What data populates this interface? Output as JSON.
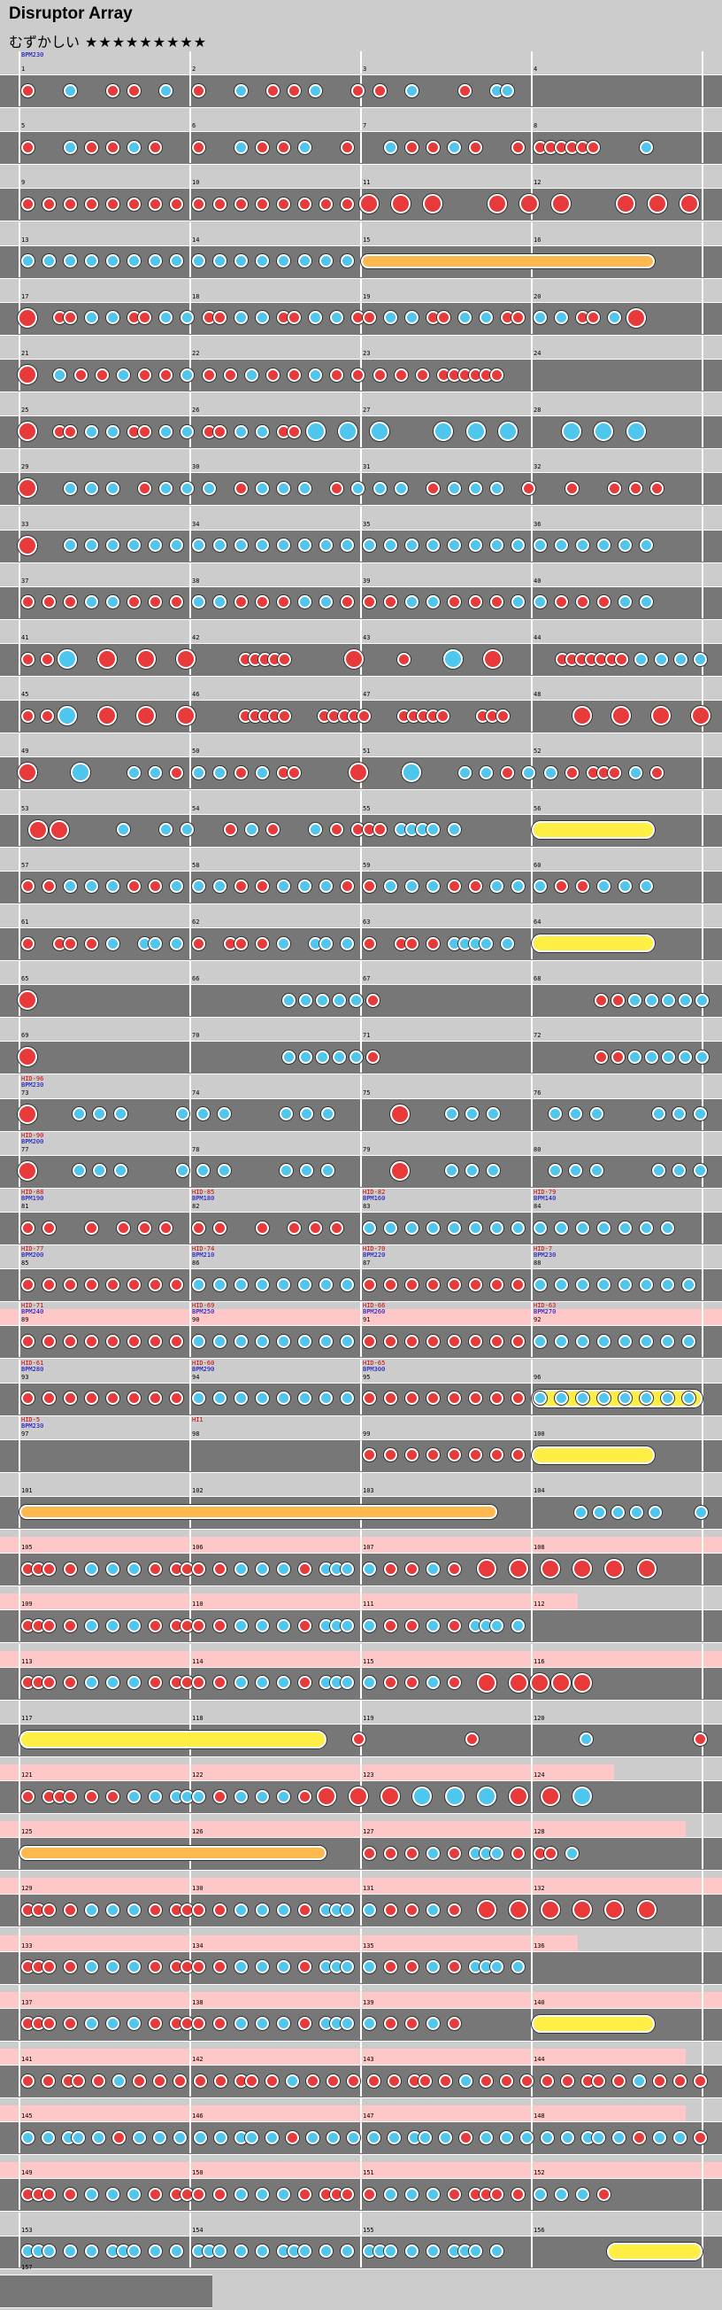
{
  "header": {
    "title": "Disruptor Array",
    "difficulty_label": "むずかしい",
    "stars": "★★★★★★★★★"
  },
  "rows": [
    {
      "m": [
        1,
        2,
        3,
        4
      ],
      "tags": [
        [
          "BPM230",
          "b",
          0
        ]
      ],
      "notes": "d...k...d.d..k..d...k..d.d.k...d.d..k....d..kk"
    },
    {
      "m": [
        5,
        6,
        7,
        8
      ],
      "notes": "d...k.d.d.k.d...d...k.d.d.k...d...k.d.d.k.d...d.dddddd....k"
    },
    {
      "m": [
        9,
        10,
        11,
        12
      ],
      "notes": "d.d.d.d.d.d.d.d.d.d.d.d.d.d.d.d.D..D..D.....D..D..D.....D..D..D"
    },
    {
      "m": [
        13,
        14,
        15,
        16
      ],
      "notes": "k.k.k.k.k.k.k.k.k.k.k.k.k.k.k.k",
      "roll": [
        0.5,
        0.93
      ]
    },
    {
      "m": [
        17,
        18,
        19,
        20
      ],
      "notes": "D..dd.k.k.dd.k.k.dd.k.k.dd.k.k.dd.k.k.dd.k.k.dd.k.k.dd.k.D"
    },
    {
      "m": [
        21,
        22,
        23,
        24
      ],
      "notes": "D..k.d.d.k.d.d.k.d.d.k.d.d.k.d.d.d.d.d.dddddd"
    },
    {
      "m": [
        25,
        26,
        27,
        28
      ],
      "notes": "D..dd.k.k.dd.k.k.dd.k.k.dd.K..K..K.....K..K..K.....K..K..K"
    },
    {
      "m": [
        29,
        30,
        31,
        32
      ],
      "notes": "D...k.k.k..d.k.k.k..d.k.k.k..d.k.k.k..d.k.k.k..d...d...d.d.d"
    },
    {
      "m": [
        33,
        34,
        35,
        36
      ],
      "notes": "D...k.k.k.k.k.k.k.k.k.k.k.k.k.k.k.k.k.k.k.k.k.k.k.k.k.k.k.k"
    },
    {
      "m": [
        37,
        38,
        39,
        40
      ],
      "notes": "d.d.d.k.k.d.d.d.k.k.d.d.d.k.k.d.d.d.k.k.d.d.d.k.k.d.d.d.k.k"
    },
    {
      "m": [
        41,
        42,
        43,
        44
      ],
      "notes": "d.d.K...D...D...D.....ddddd......D....d....K...D......ddddddd.k.k.k.k"
    },
    {
      "m": [
        45,
        46,
        47,
        48
      ],
      "notes": "d.d.K...D...D...D.....ddddd...ddddd...ddddd...ddd.......D...D...D...D"
    },
    {
      "m": [
        49,
        50,
        51,
        52
      ],
      "notes": "D....K....k.k.d.k.k.d.k.dd.....D....K....k.k.d.k.k.d.ddd.k.d"
    },
    {
      "m": [
        53,
        54,
        55,
        56
      ],
      "notes": ".D.D.....k...k.k...d.k.d...k.d.ddd.kkkk.k",
      "balloon": [
        0.75,
        0.93
      ]
    },
    {
      "m": [
        57,
        58,
        59,
        60
      ],
      "notes": "d.d.k.k.k.d.d.k.k.k.d.d.k.k.k.d.d.k.k.k.d.d.k.k.k.d.d.k.k.k"
    },
    {
      "m": [
        61,
        62,
        63,
        64
      ],
      "notes": "d..dd.d.k..kk.k.d..dd.d.k..kk.k.d..dd.d.kkkk.k",
      "balloon": [
        0.75,
        0.93
      ]
    },
    {
      "m": [
        65,
        66,
        67,
        68
      ],
      "notes": "D..............................k.k.k.k.k.d..........................d.d.k.k.k.k.k"
    },
    {
      "m": [
        69,
        70,
        71,
        72
      ],
      "notes": "D..............................k.k.k.k.k.d..........................d.d.k.k.k.k.k"
    },
    {
      "m": [
        73,
        74,
        75,
        76
      ],
      "tags": [
        [
          "HID-96",
          "r",
          0
        ],
        [
          "BPM230",
          "b",
          0
        ]
      ],
      "notes": "D....k.k.k.....k.k.k.....k.k.k......D....k.k.k.....k.k.k.....k.k.k"
    },
    {
      "m": [
        77,
        78,
        79,
        80
      ],
      "tags": [
        [
          "HID-90",
          "r",
          0
        ],
        [
          "BPM200",
          "b",
          0
        ]
      ],
      "notes": "D....k.k.k.....k.k.k.....k.k.k......D....k.k.k.....k.k.k.....k.k.k"
    },
    {
      "m": [
        81,
        82,
        83,
        84
      ],
      "tags": [
        [
          "HID-88",
          "r",
          0
        ],
        [
          "BPM190",
          "b",
          0
        ],
        [
          "HID-85",
          "r",
          1
        ],
        [
          "BPM180",
          "b",
          1
        ],
        [
          "HID-82",
          "r",
          2
        ],
        [
          "BPM160",
          "b",
          2
        ],
        [
          "HID-79",
          "r",
          3
        ],
        [
          "BPM140",
          "b",
          3
        ]
      ],
      "notes": "d.d...d..d.d.d..d.d...d..d.d.d..k.k.k.k.k.k.k.k.k.k.k.k.k.k.k"
    },
    {
      "m": [
        85,
        86,
        87,
        88
      ],
      "tags": [
        [
          "HID-77",
          "r",
          0
        ],
        [
          "BPM200",
          "b",
          0
        ],
        [
          "HID-74",
          "r",
          1
        ],
        [
          "BPM210",
          "b",
          1
        ],
        [
          "HID-70",
          "r",
          2
        ],
        [
          "BPM220",
          "b",
          2
        ],
        [
          "HID-7",
          "r",
          3
        ],
        [
          "BPM230",
          "b",
          3
        ]
      ],
      "notes": "d.d.d.d.d.d.d.d.k.k.k.k.k.k.k.k.d.d.d.d.d.d.d.d.k.k.k.k.k.k.k.k"
    },
    {
      "m": [
        89,
        90,
        91,
        92
      ],
      "pink": [
        0,
        1
      ],
      "tags": [
        [
          "HID-71",
          "r",
          0
        ],
        [
          "BPM240",
          "b",
          0
        ],
        [
          "HID-69",
          "r",
          1
        ],
        [
          "BPM250",
          "b",
          1
        ],
        [
          "HID-66",
          "r",
          2
        ],
        [
          "BPM260",
          "b",
          2
        ],
        [
          "HID-63",
          "r",
          3
        ],
        [
          "BPM270",
          "b",
          3
        ]
      ],
      "notes": "d.d.d.d.d.d.d.d.k.k.k.k.k.k.k.k.d.d.d.d.d.d.d.d.k.k.k.k.k.k.k.k"
    },
    {
      "m": [
        93,
        94,
        95,
        96
      ],
      "tags": [
        [
          "HID-61",
          "r",
          0
        ],
        [
          "BPM280",
          "b",
          0
        ],
        [
          "HID-60",
          "r",
          1
        ],
        [
          "BPM290",
          "b",
          1
        ],
        [
          "HID-65",
          "r",
          2
        ],
        [
          "BPM300",
          "b",
          2
        ]
      ],
      "notes": "d.d.d.d.d.d.d.d.k.k.k.k.k.k.k.k.d.d.d.d.d.d.d.d.k.k.k.k.k.k.k.k",
      "balloon": [
        0.75,
        1.0
      ]
    },
    {
      "m": [
        97,
        98,
        99,
        100
      ],
      "tags": [
        [
          "HID-5",
          "r",
          0
        ],
        [
          "BPM230",
          "b",
          0
        ],
        [
          "HI1",
          "r",
          1
        ]
      ],
      "notes": "................................d.d.d.d.d.d.d.d",
      "balloon": [
        0.75,
        0.93
      ]
    },
    {
      "m": [
        101,
        102,
        103,
        104
      ],
      "roll": [
        0.0,
        0.7
      ],
      "notes": "............................................................k.k.k.k.k....k"
    },
    {
      "m": [
        105,
        106,
        107,
        108
      ],
      "pink": [
        0,
        1
      ],
      "notes": "ddd.d.k.k.k.d.ddd.d.k.k.k.d.kkk.k.d.d.k.d..D..D..D..D..D..D"
    },
    {
      "m": [
        109,
        110,
        111,
        112
      ],
      "pink": [
        0,
        0.8
      ],
      "notes": "ddd.d.k.k.k.d.ddd.d.k.k.k.d.kkk.k.d.d.k.d.kkk.k"
    },
    {
      "m": [
        113,
        114,
        115,
        116
      ],
      "pink": [
        0,
        1
      ],
      "notes": "ddd.d.k.k.k.d.ddd.d.k.k.k.d.kkk.k.d.d.k.d..D..D.D.D.D"
    },
    {
      "m": [
        117,
        118,
        119,
        120
      ],
      "balloon": [
        0.0,
        0.45
      ],
      "notes": "................................d..........d..........k..........d"
    },
    {
      "m": [
        121,
        122,
        123,
        124
      ],
      "pink": [
        0,
        0.85
      ],
      "notes": "d.ddd.d.d.k.k.kkk.d.k.k.k.d.D..D..D..K..K..K..D..D..K"
    },
    {
      "m": [
        125,
        126,
        127,
        128
      ],
      "roll": [
        0.0,
        0.45
      ],
      "pink": [
        0,
        0.95
      ],
      "notes": "................................d.d.d.k.d.kkk.d.dd.k"
    },
    {
      "m": [
        129,
        130,
        131,
        132
      ],
      "pink": [
        0,
        1
      ],
      "notes": "ddd.d.k.k.k.d.ddd.d.k.k.k.d.kkk.k.d.d.k.d..D..D..D..D..D..D"
    },
    {
      "m": [
        133,
        134,
        135,
        136
      ],
      "pink": [
        0,
        0.8
      ],
      "notes": "ddd.d.k.k.k.d.ddd.d.k.k.k.d.kkk.k.d.d.k.d.kkk.k"
    },
    {
      "m": [
        137,
        138,
        139,
        140
      ],
      "pink": [
        0,
        1
      ],
      "notes": "ddd.d.k.k.k.d.ddd.d.k.k.k.d.kkk.k.d.d.k.d",
      "balloon": [
        0.75,
        0.93
      ]
    },
    {
      "m": [
        141,
        142,
        143,
        144
      ],
      "pink": [
        0,
        0.95
      ],
      "notes": "d.d.dd.d.k.d.d.d.d.d.dd.d.k.d.d.d.d.d.dd.d.k.d.d.d.d.d.dd.d.k.d.d.d"
    },
    {
      "m": [
        145,
        146,
        147,
        148
      ],
      "pink": [
        0,
        0.95
      ],
      "notes": "k.k.kk.k.d.k.k.k.k.k.kk.k.d.k.k.k.k.k.kk.k.d.k.k.k.k.k.kk.k.d.k.k.d"
    },
    {
      "m": [
        149,
        150,
        151,
        152
      ],
      "pink": [
        0,
        1
      ],
      "notes": "ddd.d.k.k.k.d.ddd.d.k.k.k.d.ddd.d.k.k.k.d.ddd.d.k.k.k.d"
    },
    {
      "m": [
        153,
        154,
        155,
        156
      ],
      "notes": "kkk.k.k.kkk.k.k.kkk.k.k.kkk.k.k.kkk.k.k.kkk.k",
      "balloon": [
        0.86,
        1.0
      ]
    }
  ],
  "final_measure": 157
}
